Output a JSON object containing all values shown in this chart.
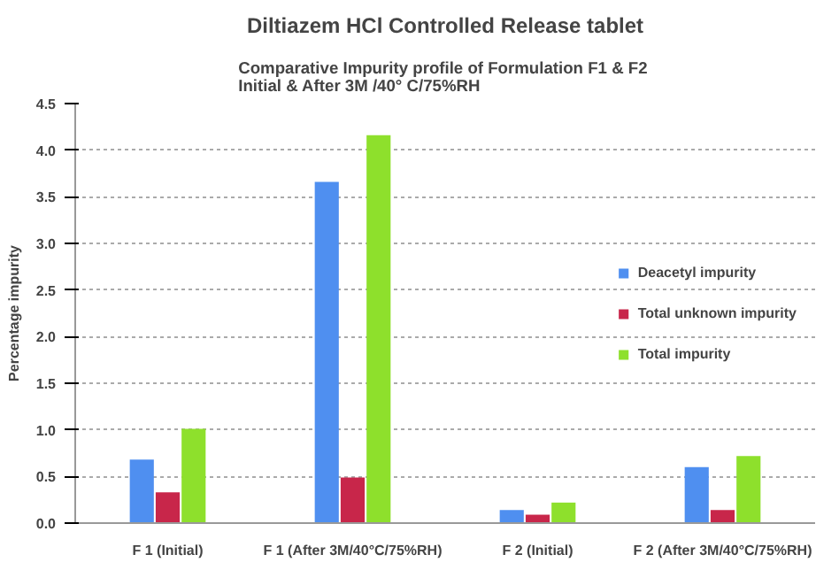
{
  "chart_data": {
    "type": "bar",
    "title": "Diltiazem HCl Controlled Release tablet",
    "subtitle": "Comparative Impurity profile of  Formulation F1 & F2\nInitial & After 3M /40° C/75%RH",
    "ylabel": "Percentage impurity",
    "categories": [
      "F 1 (Initial)",
      "F 1 (After 3M/40°C/75%RH)",
      "F 2 (Initial)",
      "F 2 (After 3M/40°C/75%RH)"
    ],
    "series": [
      {
        "name": "Deacetyl impurity",
        "color": "#4f8ff0",
        "values": [
          0.68,
          3.66,
          0.14,
          0.6
        ]
      },
      {
        "name": "Total unknown impurity",
        "color": "#c8264a",
        "values": [
          0.33,
          0.49,
          0.09,
          0.14
        ]
      },
      {
        "name": "Total impurity",
        "color": "#8ee02c",
        "values": [
          1.01,
          4.16,
          0.22,
          0.72
        ]
      }
    ],
    "ylim": [
      0,
      4.5
    ],
    "yticks": [
      {
        "value": 0,
        "label": "0.0"
      },
      {
        "value": 0.5,
        "label": "0.5"
      },
      {
        "value": 1,
        "label": "1.0"
      },
      {
        "value": 1.5,
        "label": "1.5"
      },
      {
        "value": 2,
        "label": "2.0"
      },
      {
        "value": 2.5,
        "label": "2.5"
      },
      {
        "value": 3,
        "label": "3.0"
      },
      {
        "value": 3.5,
        "label": "3.5"
      },
      {
        "value": 4,
        "label": "4.0"
      },
      {
        "value": 4.5,
        "label": "4.5"
      }
    ],
    "grid": "y",
    "legend": "right"
  }
}
